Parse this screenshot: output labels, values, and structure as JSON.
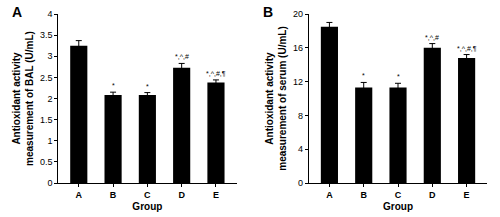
{
  "chart_data": [
    {
      "type": "bar",
      "title": "A",
      "categories": [
        "A",
        "B",
        "C",
        "D",
        "E"
      ],
      "values": [
        3.25,
        2.08,
        2.08,
        2.73,
        2.38
      ],
      "errors": [
        0.12,
        0.07,
        0.06,
        0.1,
        0.06
      ],
      "color": "#000000",
      "x_label": "Group",
      "y_label": "Antioxidant activity measurement of BAL (U/mL)",
      "ylim": [
        0,
        4
      ],
      "yticks": [
        0,
        0.5,
        1,
        1.5,
        2,
        2.5,
        3,
        3.5,
        4
      ],
      "grid": false,
      "annotations": [
        {
          "category": "B",
          "text": "*"
        },
        {
          "category": "C",
          "text": "*"
        },
        {
          "category": "D",
          "text": "*,^,#"
        },
        {
          "category": "E",
          "text": "*,^,#,¶"
        }
      ]
    },
    {
      "type": "bar",
      "title": "B",
      "categories": [
        "A",
        "B",
        "C",
        "D",
        "E"
      ],
      "values": [
        18.5,
        11.3,
        11.3,
        16.0,
        14.8
      ],
      "errors": [
        0.5,
        0.6,
        0.5,
        0.5,
        0.4
      ],
      "color": "#000000",
      "x_label": "Group",
      "y_label": "Antioxidant activity measurement of serum (U/mL)",
      "ylim": [
        0,
        20
      ],
      "yticks": [
        0,
        4,
        8,
        12,
        16,
        20
      ],
      "grid": false,
      "annotations": [
        {
          "category": "B",
          "text": "*"
        },
        {
          "category": "C",
          "text": "*"
        },
        {
          "category": "D",
          "text": "*,^,#"
        },
        {
          "category": "E",
          "text": "*,^,#,¶"
        }
      ]
    }
  ]
}
